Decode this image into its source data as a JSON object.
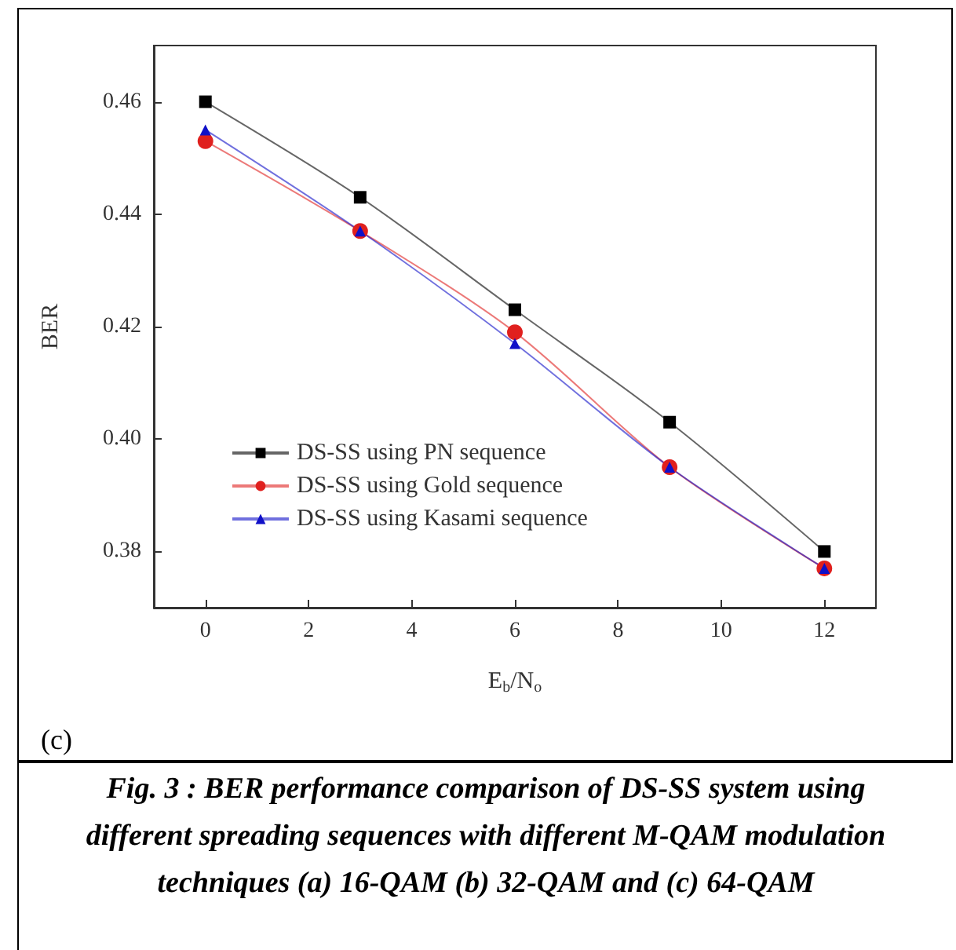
{
  "chart_data": {
    "type": "line",
    "xlabel": "E$_{b}$/N$_{o}$",
    "ylabel": "BER",
    "x": [
      0,
      3,
      6,
      9,
      12
    ],
    "series": [
      {
        "name": "DS-SS using PN sequence",
        "color": "#000000",
        "marker": "square",
        "values": [
          0.46,
          0.443,
          0.423,
          0.403,
          0.38
        ]
      },
      {
        "name": "DS-SS using Gold sequence",
        "color": "#e0201e",
        "marker": "circle",
        "values": [
          0.453,
          0.437,
          0.419,
          0.395,
          0.377
        ]
      },
      {
        "name": "DS-SS using Kasami sequence",
        "color": "#1010c8",
        "marker": "triangle",
        "values": [
          0.455,
          0.437,
          0.417,
          0.395,
          0.377
        ]
      }
    ],
    "xlim": [
      -1,
      13
    ],
    "xticks": [
      0,
      2,
      4,
      6,
      8,
      10,
      12
    ],
    "ylim": [
      0.37,
      0.47
    ],
    "yticks": [
      0.38,
      {
        "value": 0.4,
        "label": "0.40"
      },
      0.42,
      0.44,
      0.46
    ],
    "grid": false,
    "legend": "bottom left",
    "line_style": "solid",
    "annotations": [
      "(c)",
      "Fig. 3 : BER performance comparison of DS-SS system using different spreading sequences with different M-QAM modulation techniques (a) 16-QAM (b) 32-QAM and (c) 64-QAM"
    ]
  }
}
